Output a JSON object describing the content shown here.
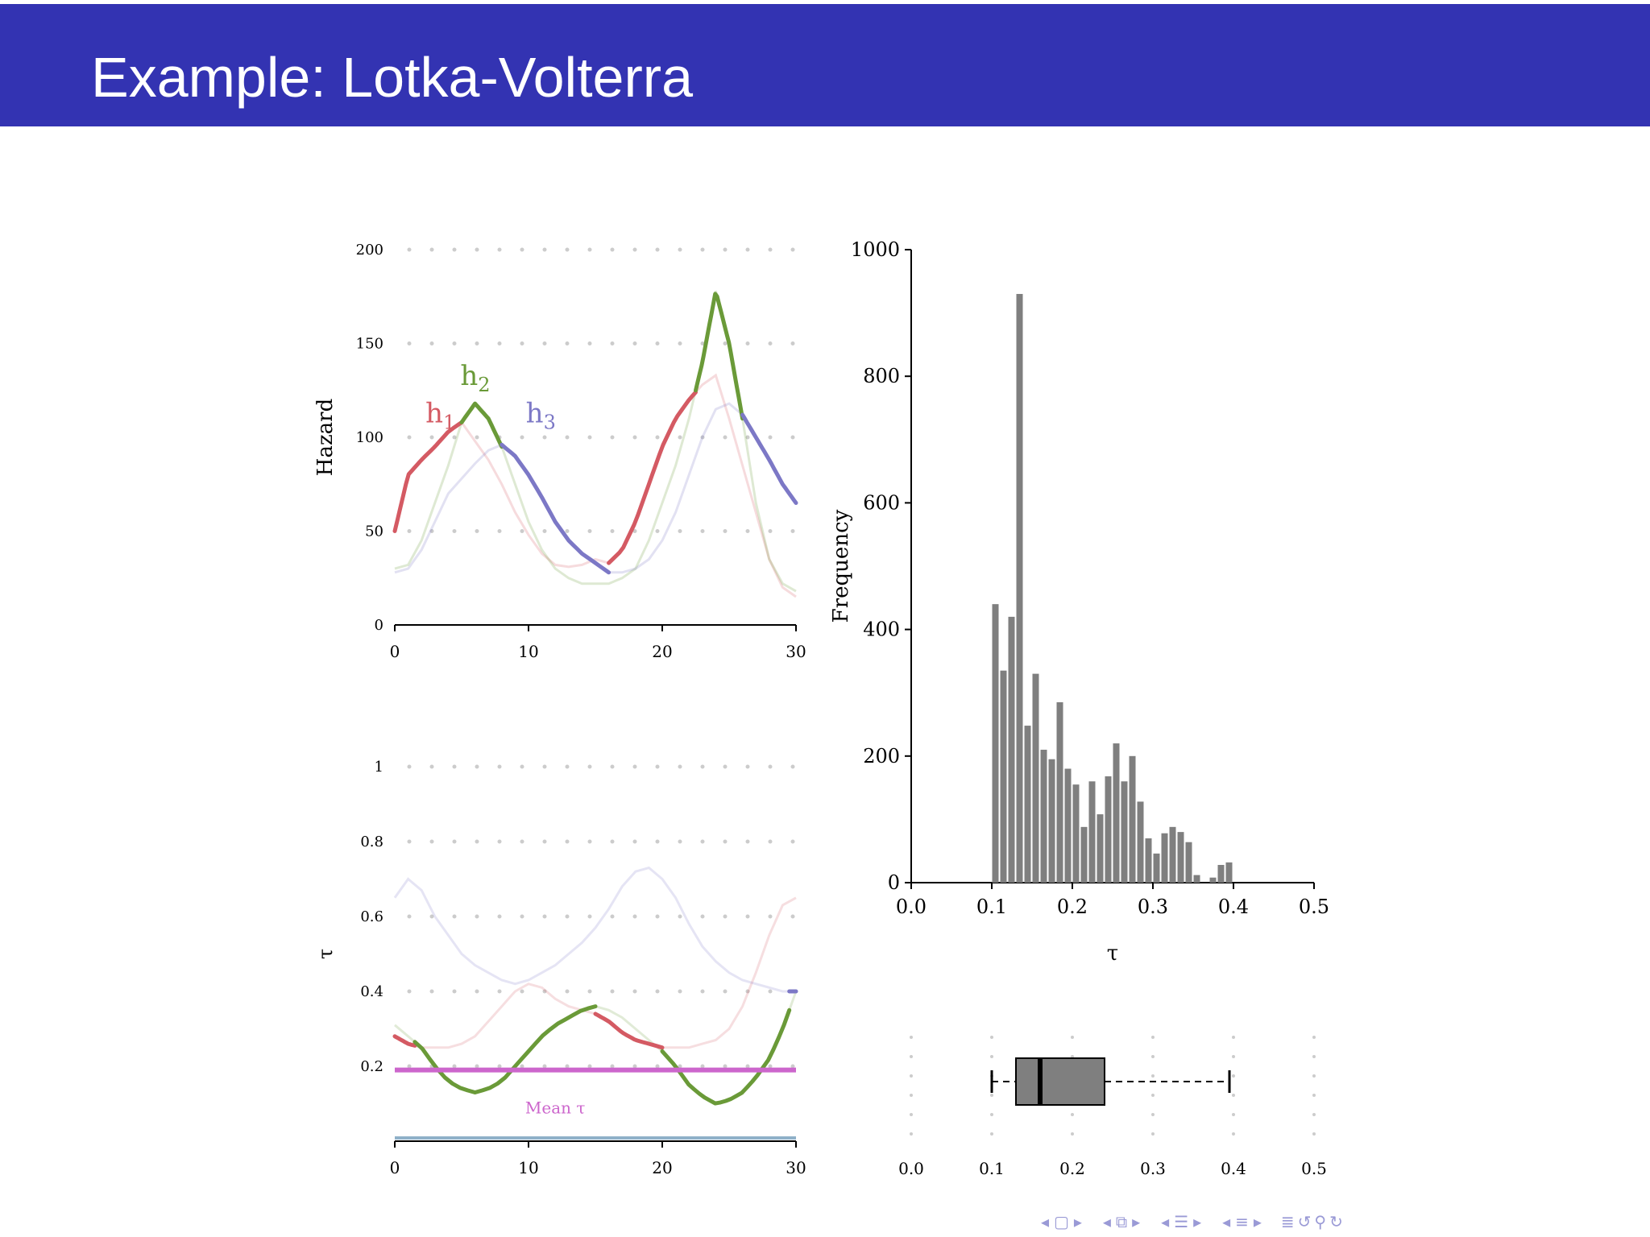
{
  "slide": {
    "title": "Example: Lotka-Volterra"
  },
  "colors": {
    "title_bar": "#3333b2",
    "h1": "#d45a63",
    "h2": "#6a9a38",
    "h3": "#7c78c6",
    "mean_tau": "#cc66cc",
    "bars": "#7f7f7f",
    "grid_dots": "#cccccc"
  },
  "navigation": {
    "icons": [
      "triangle-left-icon",
      "frame-icon",
      "triangle-right-icon",
      "triangle-left-icon",
      "subsection-icon",
      "triangle-right-icon",
      "triangle-left-icon",
      "section-icon",
      "triangle-right-icon",
      "triangle-left-icon",
      "outline-icon",
      "triangle-right-icon",
      "align-icon",
      "search-undo-icon",
      "zoom-icon",
      "redo-icon"
    ]
  },
  "chart_data": [
    {
      "id": "hazard",
      "type": "line",
      "ylabel": "Hazard",
      "xlim": [
        0,
        30
      ],
      "ylim": [
        0,
        200
      ],
      "xticks": [
        "0",
        "10",
        "20",
        "30"
      ],
      "yticks": [
        "0",
        "50",
        "100",
        "150",
        "200"
      ],
      "grid": "dotted horizontal",
      "annotations": [
        {
          "text": "h",
          "sub": "1",
          "x": 2.3,
          "y": 108,
          "color": "#d45a63"
        },
        {
          "text": "h",
          "sub": "2",
          "x": 4.9,
          "y": 128,
          "color": "#6a9a38"
        },
        {
          "text": "h",
          "sub": "3",
          "x": 9.8,
          "y": 108,
          "color": "#7c78c6"
        }
      ],
      "series": [
        {
          "key": "h1",
          "color": "#d45a63",
          "x": [
            0,
            1,
            2,
            3,
            4,
            5,
            6,
            7,
            8,
            9,
            10,
            11,
            12,
            13,
            14,
            15,
            16,
            17,
            18,
            19,
            20,
            21,
            22,
            23,
            24,
            25,
            26,
            27,
            28,
            29,
            30
          ],
          "y": [
            50,
            80,
            88,
            95,
            103,
            108,
            98,
            88,
            75,
            60,
            48,
            38,
            32,
            31,
            32,
            35,
            33,
            40,
            55,
            75,
            95,
            110,
            120,
            128,
            133,
            110,
            85,
            60,
            35,
            20,
            15
          ]
        },
        {
          "key": "h2",
          "color": "#6a9a38",
          "x": [
            0,
            1,
            2,
            3,
            4,
            5,
            6,
            7,
            8,
            9,
            10,
            11,
            12,
            13,
            14,
            15,
            16,
            17,
            18,
            19,
            20,
            21,
            22,
            23,
            24,
            25,
            26,
            27,
            28,
            29,
            30
          ],
          "y": [
            30,
            32,
            45,
            65,
            85,
            108,
            118,
            110,
            95,
            75,
            55,
            40,
            30,
            25,
            22,
            22,
            22,
            25,
            30,
            45,
            65,
            85,
            110,
            140,
            178,
            150,
            110,
            65,
            35,
            22,
            18
          ]
        },
        {
          "key": "h3",
          "color": "#7c78c6",
          "x": [
            0,
            1,
            2,
            3,
            4,
            5,
            6,
            7,
            8,
            9,
            10,
            11,
            12,
            13,
            14,
            15,
            16,
            17,
            18,
            19,
            20,
            21,
            22,
            23,
            24,
            25,
            26,
            27,
            28,
            29,
            30
          ],
          "y": [
            28,
            30,
            40,
            55,
            70,
            78,
            86,
            93,
            96,
            90,
            80,
            68,
            55,
            45,
            38,
            33,
            28,
            28,
            30,
            35,
            45,
            60,
            80,
            100,
            115,
            118,
            112,
            100,
            88,
            75,
            65
          ]
        }
      ],
      "max_segments": [
        {
          "key": "h1",
          "x0": 0,
          "x1": 5
        },
        {
          "key": "h2",
          "x0": 5,
          "x1": 8
        },
        {
          "key": "h3",
          "x0": 8,
          "x1": 16
        },
        {
          "key": "h1",
          "x0": 16,
          "x1": 22.5
        },
        {
          "key": "h2",
          "x0": 22.5,
          "x1": 26
        },
        {
          "key": "h3",
          "x0": 26,
          "x1": 30
        }
      ]
    },
    {
      "id": "tau-trace",
      "type": "line",
      "ylabel": "τ",
      "xlim": [
        0,
        30
      ],
      "ylim": [
        0,
        1
      ],
      "xticks": [
        "0",
        "10",
        "20",
        "30"
      ],
      "yticks": [
        "0.2",
        "0.4",
        "0.6",
        "0.8",
        "1"
      ],
      "grid": "dotted horizontal",
      "mean_label": "Mean τ",
      "mean_value": 0.19,
      "series": [
        {
          "key": "tau1",
          "color": "#d45a63",
          "x": [
            0,
            1,
            2,
            3,
            4,
            5,
            6,
            7,
            8,
            9,
            10,
            11,
            12,
            13,
            14,
            15,
            16,
            17,
            18,
            19,
            20,
            21,
            22,
            23,
            24,
            25,
            26,
            27,
            28,
            29,
            30
          ],
          "y": [
            0.28,
            0.26,
            0.25,
            0.25,
            0.25,
            0.26,
            0.28,
            0.32,
            0.36,
            0.4,
            0.42,
            0.41,
            0.38,
            0.36,
            0.35,
            0.34,
            0.32,
            0.29,
            0.27,
            0.26,
            0.25,
            0.25,
            0.25,
            0.26,
            0.27,
            0.3,
            0.36,
            0.45,
            0.55,
            0.63,
            0.65
          ]
        },
        {
          "key": "tau2",
          "color": "#6a9a38",
          "x": [
            0,
            1,
            2,
            3,
            4,
            5,
            6,
            7,
            8,
            9,
            10,
            11,
            12,
            13,
            14,
            15,
            16,
            17,
            18,
            19,
            20,
            21,
            22,
            23,
            24,
            25,
            26,
            27,
            28,
            29,
            30
          ],
          "y": [
            0.31,
            0.28,
            0.25,
            0.2,
            0.16,
            0.14,
            0.13,
            0.14,
            0.16,
            0.2,
            0.24,
            0.28,
            0.31,
            0.33,
            0.35,
            0.36,
            0.35,
            0.33,
            0.3,
            0.27,
            0.24,
            0.2,
            0.15,
            0.12,
            0.1,
            0.11,
            0.13,
            0.17,
            0.22,
            0.3,
            0.4
          ]
        },
        {
          "key": "tau3",
          "color": "#7c78c6",
          "x": [
            0,
            1,
            2,
            3,
            4,
            5,
            6,
            7,
            8,
            9,
            10,
            11,
            12,
            13,
            14,
            15,
            16,
            17,
            18,
            19,
            20,
            21,
            22,
            23,
            24,
            25,
            26,
            27,
            28,
            29,
            30
          ],
          "y": [
            0.65,
            0.7,
            0.67,
            0.6,
            0.55,
            0.5,
            0.47,
            0.45,
            0.43,
            0.42,
            0.43,
            0.45,
            0.47,
            0.5,
            0.53,
            0.57,
            0.62,
            0.68,
            0.72,
            0.73,
            0.7,
            0.65,
            0.58,
            0.52,
            0.48,
            0.45,
            0.43,
            0.42,
            0.41,
            0.4,
            0.4
          ]
        }
      ],
      "min_segments": [
        {
          "key": "tau1",
          "x0": 0,
          "x1": 1.5
        },
        {
          "key": "tau2",
          "x0": 1.5,
          "x1": 15
        },
        {
          "key": "tau1",
          "x0": 15,
          "x1": 20
        },
        {
          "key": "tau2",
          "x0": 20,
          "x1": 29.5
        },
        {
          "key": "tau3",
          "x0": 29.5,
          "x1": 30
        }
      ]
    },
    {
      "id": "tau-histogram",
      "type": "bar",
      "xlabel": "τ",
      "ylabel": "Frequency",
      "xlim": [
        0.0,
        0.5
      ],
      "ylim": [
        0,
        1000
      ],
      "xticks": [
        "0.0",
        "0.1",
        "0.2",
        "0.3",
        "0.4",
        "0.5"
      ],
      "yticks": [
        "0",
        "200",
        "400",
        "600",
        "800",
        "1000"
      ],
      "bin_width": 0.01,
      "bin_starts": [
        0.1,
        0.11,
        0.12,
        0.13,
        0.14,
        0.15,
        0.16,
        0.17,
        0.18,
        0.19,
        0.2,
        0.21,
        0.22,
        0.23,
        0.24,
        0.25,
        0.26,
        0.27,
        0.28,
        0.29,
        0.3,
        0.31,
        0.32,
        0.33,
        0.34,
        0.35,
        0.36,
        0.37,
        0.38,
        0.39
      ],
      "values": [
        440,
        335,
        420,
        930,
        248,
        330,
        210,
        195,
        285,
        180,
        155,
        88,
        160,
        108,
        168,
        220,
        160,
        200,
        128,
        70,
        46,
        78,
        88,
        80,
        64,
        12,
        0,
        8,
        28,
        32
      ]
    },
    {
      "id": "tau-boxplot",
      "type": "boxplot",
      "xlim": [
        0.0,
        0.5
      ],
      "xticks": [
        "0.0",
        "0.1",
        "0.2",
        "0.3",
        "0.4",
        "0.5"
      ],
      "whisker_low": 0.1,
      "q1": 0.13,
      "median": 0.16,
      "q3": 0.24,
      "whisker_high": 0.395
    }
  ]
}
